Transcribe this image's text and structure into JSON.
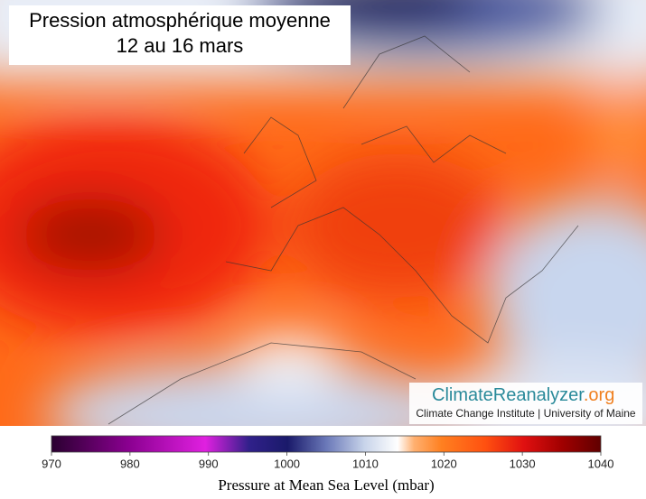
{
  "title": {
    "line1": "Pression atmosphérique moyenne",
    "line2": "12 au 16 mars"
  },
  "branding": {
    "name": "ClimateReanalyzer",
    "domain": ".org",
    "subtitle": "Climate Change Institute | University of Maine"
  },
  "colorbar": {
    "label": "Pressure at Mean Sea Level (mbar)",
    "range": [
      970,
      1040
    ],
    "ticks": [
      970,
      980,
      990,
      1000,
      1010,
      1020,
      1030,
      1040
    ]
  }
}
